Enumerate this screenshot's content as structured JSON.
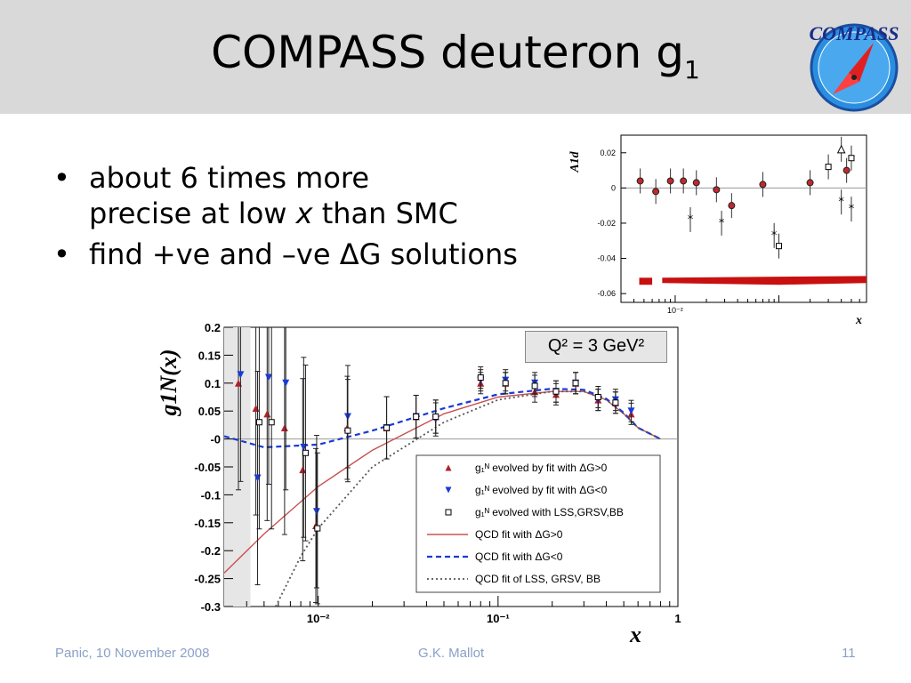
{
  "slide": {
    "title_main": "COMPASS deuteron g",
    "title_sub": "1",
    "logo_text": "COMPASS",
    "bullets": [
      {
        "dot": "•",
        "line1": "about 6 times more",
        "line2_a": "precise at low ",
        "line2_x": "x",
        "line2_b": " than SMC"
      },
      {
        "dot": "•",
        "text": "find +ve and –ve ΔG solutions"
      }
    ],
    "footer_left": "Panic, 10 November 2008",
    "footer_center": "G.K. Mallot",
    "footer_right": "11",
    "q2_label": "Q² = 3 GeV²"
  },
  "colors": {
    "title_bar": "#d9d9d9",
    "red": "#c0282d",
    "blue": "#1a3ad8",
    "dark": "#333333",
    "footer": "#8aa0c8"
  },
  "chart_data": [
    {
      "type": "scatter",
      "ylabel": "A1d",
      "xlabel": "x",
      "xscale": "log",
      "xlim": [
        0.003,
        0.7
      ],
      "ylim": [
        -0.065,
        0.03
      ],
      "yticks": [
        "0.02",
        "0",
        "-0.02",
        "-0.04",
        "-0.06"
      ],
      "xtick_labels": [
        "10⁻²"
      ],
      "series": [
        {
          "marker": "red-circle",
          "x": [
            0.0046,
            0.0065,
            0.009,
            0.012,
            0.016,
            0.025,
            0.035,
            0.07,
            0.2,
            0.45
          ],
          "y": [
            0.004,
            -0.002,
            0.004,
            0.004,
            0.003,
            -0.001,
            -0.01,
            0.002,
            0.003,
            0.01
          ]
        },
        {
          "marker": "star",
          "x": [
            0.014,
            0.028,
            0.09,
            0.4,
            0.5
          ],
          "y": [
            -0.018,
            -0.02,
            -0.027,
            -0.008,
            -0.012
          ]
        },
        {
          "marker": "open-square",
          "x": [
            0.1,
            0.3,
            0.5
          ],
          "y": [
            -0.033,
            0.012,
            0.017
          ]
        },
        {
          "marker": "open-triangle",
          "x": [
            0.4
          ],
          "y": [
            0.022
          ]
        }
      ]
    },
    {
      "type": "scatter",
      "ylabel": "g1N(x)",
      "xlabel": "x",
      "xscale": "log",
      "xlim": [
        0.003,
        1
      ],
      "ylim": [
        -0.3,
        0.2
      ],
      "yticks": [
        "0.2",
        "0.15",
        "0.1",
        "0.05",
        "-0",
        "-0.05",
        "-0.1",
        "-0.15",
        "-0.2",
        "-0.25",
        "-0.3"
      ],
      "xtick_labels": [
        "10⁻²",
        "10⁻¹",
        "1"
      ],
      "series": [
        {
          "name": "g₁ᴺ evolved by fit with ΔG>0",
          "marker": "red-triangle",
          "x": [
            0.0036,
            0.0045,
            0.0052,
            0.0065,
            0.0082,
            0.0097,
            0.0145,
            0.024,
            0.035,
            0.045,
            0.08,
            0.11,
            0.16,
            0.21,
            0.27,
            0.36,
            0.45,
            0.55
          ],
          "y": [
            0.1,
            0.055,
            0.045,
            0.02,
            -0.055,
            -0.155,
            0.02,
            0.02,
            0.04,
            0.04,
            0.1,
            0.1,
            0.085,
            0.08,
            0.1,
            0.07,
            0.065,
            0.045
          ]
        },
        {
          "name": "g₁ᴺ evolved by fit with ΔG<0",
          "marker": "blue-triangle",
          "x": [
            0.0037,
            0.0046,
            0.0053,
            0.0066,
            0.0083,
            0.0098,
            0.0146,
            0.024,
            0.035,
            0.045,
            0.08,
            0.11,
            0.16,
            0.21,
            0.27,
            0.36,
            0.45,
            0.55
          ],
          "y": [
            0.115,
            -0.07,
            0.11,
            0.1,
            -0.015,
            -0.13,
            0.04,
            0.02,
            0.04,
            0.035,
            0.105,
            0.105,
            0.1,
            0.085,
            0.1,
            0.07,
            0.07,
            0.05
          ]
        },
        {
          "name": "g₁ᴺ evolved with LSS,GRSV,BB",
          "marker": "open-square",
          "x": [
            0.0047,
            0.0055,
            0.0085,
            0.0099,
            0.0146,
            0.024,
            0.035,
            0.045,
            0.08,
            0.11,
            0.16,
            0.21,
            0.27,
            0.36,
            0.45
          ],
          "y": [
            0.03,
            0.03,
            -0.025,
            -0.16,
            0.015,
            0.02,
            0.04,
            0.04,
            0.11,
            0.1,
            0.095,
            0.085,
            0.1,
            0.075,
            0.065
          ]
        },
        {
          "name": "QCD fit with ΔG>0",
          "style": "solid-red",
          "x": [
            0.003,
            0.005,
            0.01,
            0.02,
            0.05,
            0.1,
            0.2,
            0.3,
            0.4,
            0.5,
            0.6,
            0.8
          ],
          "y": [
            -0.24,
            -0.17,
            -0.085,
            -0.02,
            0.045,
            0.075,
            0.085,
            0.085,
            0.07,
            0.045,
            0.02,
            0.0
          ]
        },
        {
          "name": "QCD fit with ΔG<0",
          "style": "dashed-blue",
          "x": [
            0.003,
            0.005,
            0.01,
            0.02,
            0.05,
            0.1,
            0.2,
            0.3,
            0.4,
            0.5,
            0.6,
            0.8
          ],
          "y": [
            0.005,
            -0.015,
            -0.01,
            0.015,
            0.055,
            0.08,
            0.09,
            0.088,
            0.072,
            0.047,
            0.02,
            0.0
          ]
        },
        {
          "name": "QCD fit of LSS, GRSV, BB",
          "style": "dotted-black",
          "x": [
            0.0058,
            0.008,
            0.01,
            0.02,
            0.05,
            0.1,
            0.2,
            0.3,
            0.4,
            0.5,
            0.6,
            0.8
          ],
          "y": [
            -0.3,
            -0.21,
            -0.16,
            -0.05,
            0.03,
            0.07,
            0.085,
            0.085,
            0.07,
            0.045,
            0.02,
            0.0
          ]
        }
      ]
    }
  ]
}
